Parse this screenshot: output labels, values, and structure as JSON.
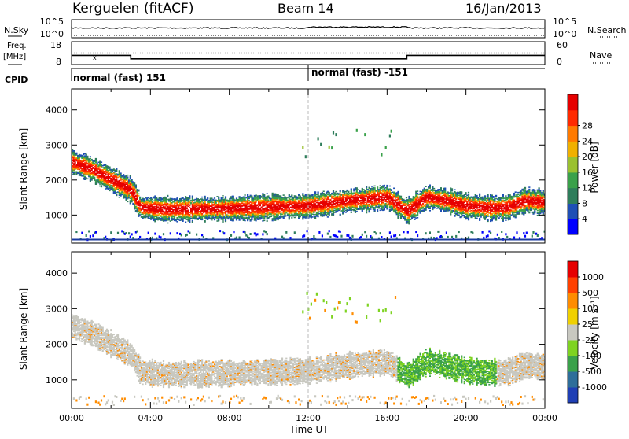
{
  "header": {
    "station": "Kerguelen (fitACF)",
    "beam": "Beam 14",
    "date": "16/Jan/2013"
  },
  "panel_labels": {
    "nsky": "N.Sky",
    "nsearch": "N.Search",
    "freq_line1": "Freq.",
    "freq_line2": "[MHz]",
    "nave": "Nave",
    "cpid": "CPID"
  },
  "cpid_segments": [
    {
      "label": "normal (fast) 151",
      "start_hour": 0
    },
    {
      "label": "normal (fast) -151",
      "start_hour": 12
    }
  ],
  "chart_data": [
    {
      "type": "line",
      "title": "N.Sky / N.Search",
      "left_ticks": [
        "10^5",
        "10^0"
      ],
      "right_ticks": [
        "10^5",
        "10^0"
      ],
      "series": [
        {
          "name": "N.Sky"
        },
        {
          "name": "N.Search"
        }
      ]
    },
    {
      "type": "line",
      "left_ylim": [
        8,
        18
      ],
      "left_ticks": [
        "18",
        "8"
      ],
      "right_ylim": [
        0,
        60
      ],
      "right_ticks": [
        "60",
        "0"
      ],
      "series": [
        {
          "name": "Freq. [MHz]",
          "x": [
            0,
            3,
            3,
            17,
            17,
            24
          ],
          "y": [
            12,
            12,
            10.5,
            10.5,
            12,
            12
          ]
        },
        {
          "name": "Nave",
          "x": [
            0,
            24
          ],
          "y": [
            30,
            30
          ]
        }
      ]
    },
    {
      "type": "heatmap",
      "xlabel": "Time UT",
      "ylabel": "Slant Range [km]",
      "xlim": [
        0,
        24
      ],
      "ylim": [
        200,
        4600
      ],
      "y_ticks": [
        1000,
        2000,
        3000,
        4000
      ],
      "colorbar_label": "Power [dB]",
      "colorbar_ticks": [
        "28",
        "24",
        "20",
        "16",
        "12",
        "8",
        "4"
      ],
      "colorbar_colors": [
        "#0000ff",
        "#1f4fb5",
        "#2e7d5b",
        "#3aa14a",
        "#9ac12f",
        "#f0b000",
        "#ff7a00",
        "#ff2a00",
        "#e60000"
      ],
      "trace": {
        "x": [
          0,
          1,
          2,
          3,
          3.5,
          5,
          8,
          10,
          12,
          14,
          16,
          17,
          18,
          19,
          20,
          21,
          22,
          23,
          24
        ],
        "y": [
          2500,
          2300,
          2000,
          1700,
          1200,
          1150,
          1180,
          1220,
          1250,
          1400,
          1500,
          1100,
          1500,
          1400,
          1250,
          1200,
          1200,
          1400,
          1350
        ]
      }
    },
    {
      "type": "heatmap",
      "xlabel": "Time UT",
      "ylabel": "Slant Range [km]",
      "xlim": [
        0,
        24
      ],
      "ylim": [
        200,
        4600
      ],
      "x_ticks": [
        "00:00",
        "04:00",
        "08:00",
        "12:00",
        "16:00",
        "20:00",
        "00:00"
      ],
      "y_ticks": [
        1000,
        2000,
        3000,
        4000
      ],
      "colorbar_label": "Velocity [m s⁻¹]",
      "colorbar_ticks": [
        "1000",
        "500",
        "100",
        "25",
        "-25",
        "-100",
        "-500",
        "-1000"
      ],
      "colorbar_colors": [
        "#1f3fb5",
        "#2e6e9a",
        "#3aa14a",
        "#7ed321",
        "#c8c8c0",
        "#f0d000",
        "#ff8c00",
        "#ff4000",
        "#e60000"
      ]
    }
  ]
}
